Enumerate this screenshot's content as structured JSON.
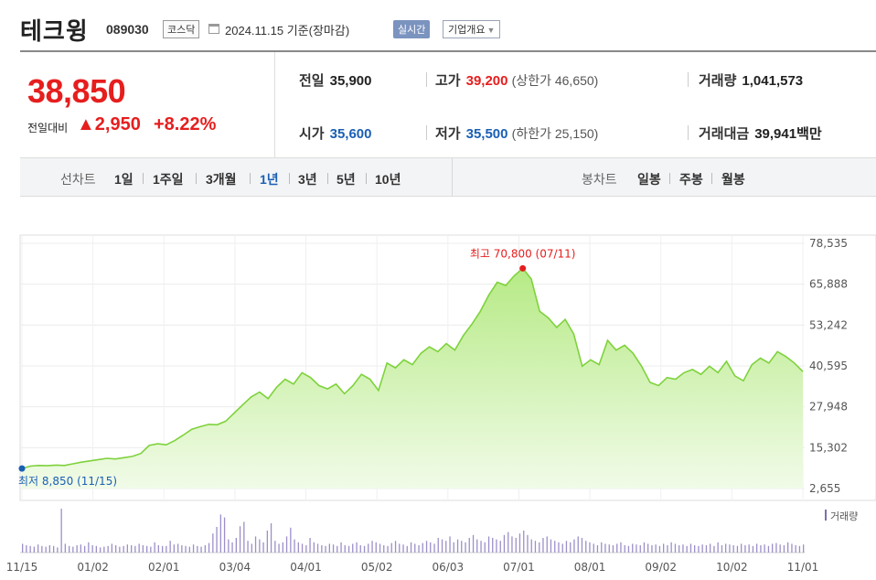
{
  "header": {
    "name": "테크윙",
    "code": "089030",
    "market": "코스닥",
    "date": "2024.11.15 기준(장마감)",
    "realtime": "실시간",
    "overview": "기업개요"
  },
  "price": {
    "current": "38,850",
    "change_label": "전일대비",
    "change": "▲2,950",
    "change_pct": "+8.22%"
  },
  "stats": {
    "prev_label": "전일",
    "prev": "35,900",
    "high_label": "고가",
    "high": "39,200",
    "upper_limit": "(상한가 46,650)",
    "volume_label": "거래량",
    "volume": "1,041,573",
    "open_label": "시가",
    "open": "35,600",
    "low_label": "저가",
    "low": "35,500",
    "lower_limit": "(하한가 25,150)",
    "amount_label": "거래대금",
    "amount": "39,941",
    "amount_unit": "백만"
  },
  "periods": {
    "line_label": "선차트",
    "line": [
      "1일",
      "1주일",
      "3개월",
      "1년",
      "3년",
      "5년",
      "10년"
    ],
    "active": "1년",
    "candle_label": "봉차트",
    "candle": [
      "일봉",
      "주봉",
      "월봉"
    ]
  },
  "chart_data": {
    "type": "area",
    "yticks": [
      "78,535",
      "65,888",
      "53,242",
      "40,595",
      "27,948",
      "15,302",
      "2,655"
    ],
    "ylim": [
      2655,
      78535
    ],
    "xticks": [
      "11/15",
      "01/02",
      "02/01",
      "03/04",
      "04/01",
      "05/02",
      "06/03",
      "07/01",
      "08/01",
      "09/02",
      "10/02",
      "11/01"
    ],
    "max_label": "최고 70,800 (07/11)",
    "min_label": "최저 8,850 (11/15)",
    "volume_legend": "거래량",
    "colors": {
      "line": "#7ed23c",
      "fill_top": "#b6ea85",
      "fill_bottom": "#f1fbe8",
      "max": "#e61e1e",
      "min": "#1a5fb4"
    },
    "series": [
      8850,
      9600,
      9800,
      9700,
      9900,
      9800,
      10300,
      10800,
      11200,
      11600,
      12000,
      11800,
      12200,
      12600,
      13500,
      16000,
      16500,
      16200,
      17500,
      19200,
      21000,
      21800,
      22500,
      22400,
      23500,
      26000,
      28500,
      31000,
      32500,
      30500,
      34000,
      36500,
      35000,
      38500,
      37000,
      34500,
      33500,
      35000,
      32000,
      34500,
      38000,
      36500,
      33000,
      41500,
      40000,
      42500,
      41000,
      44500,
      46500,
      45000,
      47500,
      45500,
      50000,
      53500,
      57500,
      62500,
      66500,
      65500,
      68500,
      70800,
      67500,
      57500,
      55500,
      52500,
      55000,
      50500,
      40500,
      42500,
      41000,
      48500,
      45500,
      47000,
      44500,
      40500,
      35500,
      34500,
      37000,
      36500,
      38500,
      39500,
      38000,
      40500,
      38500,
      42000,
      37500,
      36000,
      41000,
      43000,
      41500,
      45000,
      43500,
      41500,
      38850
    ],
    "volume": [
      12,
      10,
      9,
      8,
      11,
      9,
      8,
      10,
      9,
      7,
      60,
      12,
      9,
      8,
      10,
      11,
      9,
      14,
      10,
      9,
      7,
      8,
      9,
      12,
      10,
      8,
      9,
      11,
      10,
      9,
      12,
      10,
      9,
      8,
      14,
      10,
      9,
      9,
      16,
      11,
      12,
      10,
      9,
      8,
      11,
      9,
      8,
      10,
      13,
      26,
      35,
      52,
      48,
      18,
      14,
      20,
      36,
      42,
      16,
      12,
      22,
      18,
      14,
      30,
      40,
      16,
      12,
      14,
      22,
      34,
      18,
      14,
      12,
      10,
      20,
      14,
      12,
      10,
      9,
      12,
      11,
      9,
      14,
      10,
      9,
      12,
      14,
      10,
      9,
      12,
      16,
      14,
      12,
      10,
      9,
      13,
      16,
      12,
      11,
      9,
      14,
      12,
      10,
      13,
      16,
      14,
      12,
      20,
      18,
      16,
      22,
      14,
      18,
      16,
      14,
      20,
      24,
      18,
      16,
      14,
      22,
      20,
      18,
      16,
      24,
      28,
      22,
      20,
      26,
      30,
      24,
      18,
      16,
      14,
      20,
      22,
      18,
      16,
      14,
      12,
      16,
      14,
      18,
      22,
      20,
      16,
      14,
      12,
      10,
      14,
      12,
      11,
      10,
      12,
      14,
      10,
      9,
      12,
      11,
      10,
      14,
      12,
      10,
      11,
      9,
      12,
      10,
      14,
      12,
      10,
      11,
      9,
      12,
      10,
      9,
      11,
      10,
      12,
      9,
      14,
      10,
      12,
      11,
      10,
      9,
      12,
      10,
      11,
      9,
      12,
      10,
      11,
      9,
      12,
      13,
      11,
      10,
      14,
      12,
      10,
      9,
      11
    ]
  }
}
